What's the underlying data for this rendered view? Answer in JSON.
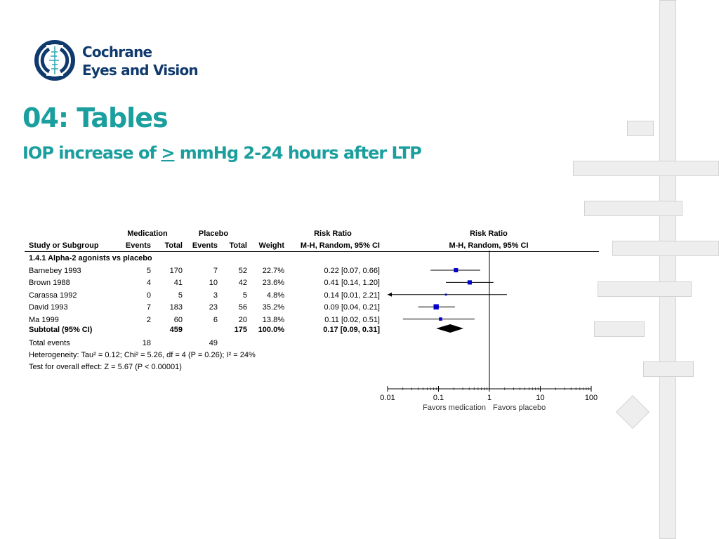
{
  "logo": {
    "line1": "Cochrane",
    "line2": "Eyes and Vision"
  },
  "title": "04: Tables",
  "subtitle": {
    "before": "IOP increase of ",
    "symbol": ">",
    "after": " mmHg 2-24 hours after LTP"
  },
  "table": {
    "group_medication": "Medication",
    "group_placebo": "Placebo",
    "group_rr": "Risk Ratio",
    "group_rr_plot": "Risk Ratio",
    "col_study": "Study or Subgroup",
    "col_events": "Events",
    "col_total": "Total",
    "col_weight": "Weight",
    "col_method": "M-H, Random, 95% CI",
    "col_method_plot": "M-H, Random, 95% CI",
    "subgroup": "1.4.1 Alpha-2 agonists vs placebo",
    "rows": [
      {
        "study": "Barnebey 1993",
        "med_events": "5",
        "med_total": "170",
        "pla_events": "7",
        "pla_total": "52",
        "weight": "22.7%",
        "rr": "0.22 [0.07, 0.66]"
      },
      {
        "study": "Brown 1988",
        "med_events": "4",
        "med_total": "41",
        "pla_events": "10",
        "pla_total": "42",
        "weight": "23.6%",
        "rr": "0.41 [0.14, 1.20]"
      },
      {
        "study": "Carassa 1992",
        "med_events": "0",
        "med_total": "5",
        "pla_events": "3",
        "pla_total": "5",
        "weight": "4.8%",
        "rr": "0.14 [0.01, 2.21]"
      },
      {
        "study": "David 1993",
        "med_events": "7",
        "med_total": "183",
        "pla_events": "23",
        "pla_total": "56",
        "weight": "35.2%",
        "rr": "0.09 [0.04, 0.21]"
      },
      {
        "study": "Ma 1999",
        "med_events": "2",
        "med_total": "60",
        "pla_events": "6",
        "pla_total": "20",
        "weight": "13.8%",
        "rr": "0.11 [0.02, 0.51]"
      }
    ],
    "subtotal": {
      "label": "Subtotal (95% CI)",
      "med_total": "459",
      "pla_total": "175",
      "weight": "100.0%",
      "rr": "0.17 [0.09, 0.31]"
    },
    "total_events": {
      "label": "Total events",
      "med": "18",
      "pla": "49"
    },
    "heterogeneity": "Heterogeneity: Tau² = 0.12; Chi² = 5.26, df = 4 (P = 0.26); I² = 24%",
    "overall_effect": "Test for overall effect: Z = 5.67 (P < 0.00001)"
  },
  "chart_data": {
    "type": "scatter",
    "scale": "log",
    "xlim": [
      0.01,
      100
    ],
    "ticks": [
      "0.01",
      "0.1",
      "1",
      "10",
      "100"
    ],
    "tick_values": [
      0.01,
      0.1,
      1,
      10,
      100
    ],
    "favors_left": "Favors medication",
    "favors_right": "Favors placebo",
    "studies": [
      {
        "rr": 0.22,
        "lo": 0.07,
        "hi": 0.66,
        "weight": 22.7
      },
      {
        "rr": 0.41,
        "lo": 0.14,
        "hi": 1.2,
        "weight": 23.6
      },
      {
        "rr": 0.14,
        "lo": 0.01,
        "hi": 2.21,
        "weight": 4.8
      },
      {
        "rr": 0.09,
        "lo": 0.04,
        "hi": 0.21,
        "weight": 35.2
      },
      {
        "rr": 0.11,
        "lo": 0.02,
        "hi": 0.51,
        "weight": 13.8
      }
    ],
    "pooled": {
      "rr": 0.17,
      "lo": 0.09,
      "hi": 0.31
    },
    "colors": {
      "marker": "#0000cc",
      "line": "#000000",
      "diamond": "#000000"
    }
  }
}
